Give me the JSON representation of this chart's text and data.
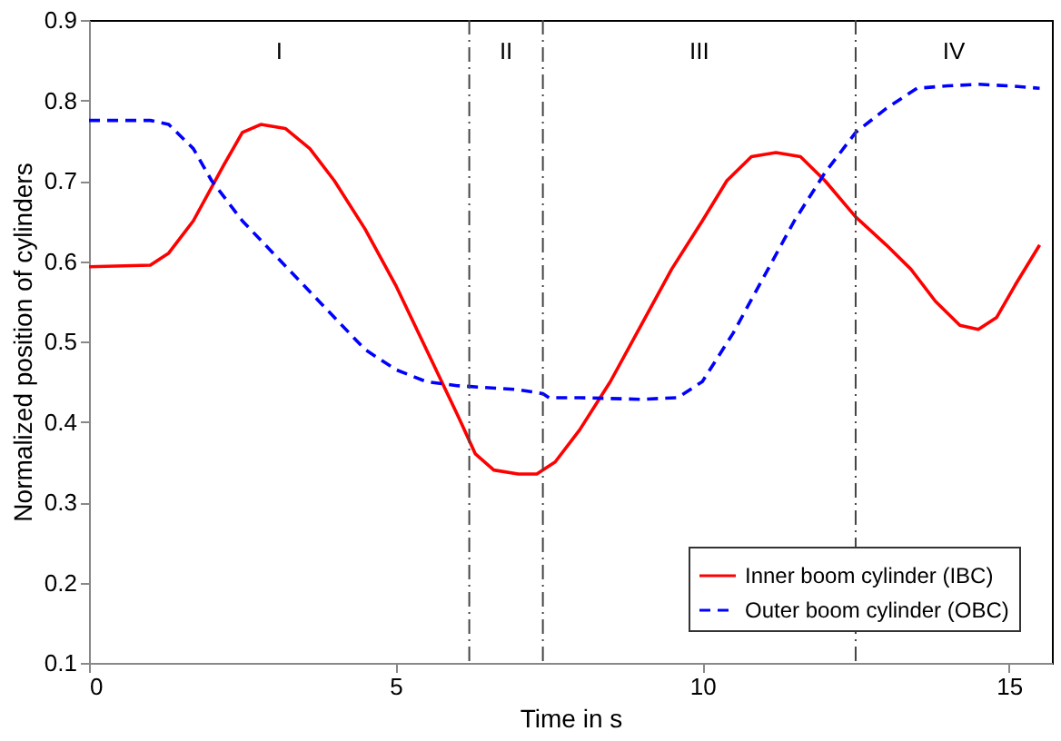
{
  "chart_data": {
    "type": "line",
    "xlabel": "Time in s",
    "ylabel": "Normalized position of cylinders",
    "xlim": [
      0,
      15.7
    ],
    "ylim": [
      0.1,
      0.9
    ],
    "xticks": [
      0,
      5,
      10,
      15
    ],
    "yticks": [
      0.1,
      0.2,
      0.3,
      0.4,
      0.5,
      0.6,
      0.7,
      0.8,
      0.9
    ],
    "grid": false,
    "legend": "bottom right",
    "series": [
      {
        "name": "Inner boom cylinder (IBC)",
        "color": "#ff0000",
        "line_style": "solid",
        "x": [
          0,
          1,
          1.3,
          1.7,
          2.2,
          2.5,
          2.8,
          3.2,
          3.6,
          4,
          4.5,
          5,
          5.5,
          6,
          6.3,
          6.6,
          7,
          7.3,
          7.6,
          8,
          8.5,
          9,
          9.5,
          10,
          10.4,
          10.8,
          11.2,
          11.6,
          12,
          12.5,
          13,
          13.4,
          13.8,
          14.2,
          14.5,
          14.8,
          15.1,
          15.5
        ],
        "values": [
          0.593,
          0.595,
          0.61,
          0.65,
          0.72,
          0.76,
          0.77,
          0.765,
          0.74,
          0.7,
          0.64,
          0.57,
          0.49,
          0.41,
          0.36,
          0.34,
          0.335,
          0.335,
          0.35,
          0.39,
          0.45,
          0.52,
          0.59,
          0.65,
          0.7,
          0.73,
          0.735,
          0.73,
          0.7,
          0.655,
          0.62,
          0.59,
          0.55,
          0.52,
          0.515,
          0.53,
          0.57,
          0.62
        ]
      },
      {
        "name": "Outer boom cylinder (OBC)",
        "color": "#0000ff",
        "line_style": "dashed",
        "x": [
          0,
          1,
          1.3,
          1.7,
          2,
          2.5,
          3,
          3.5,
          4,
          4.5,
          5,
          5.5,
          6,
          7,
          7.4,
          7.5,
          8,
          9,
          9.6,
          10,
          10.5,
          11,
          11.5,
          12,
          12.5,
          13,
          13.5,
          14,
          14.5,
          15,
          15.5
        ],
        "values": [
          0.775,
          0.775,
          0.77,
          0.74,
          0.7,
          0.65,
          0.61,
          0.57,
          0.53,
          0.49,
          0.465,
          0.45,
          0.445,
          0.44,
          0.435,
          0.43,
          0.43,
          0.428,
          0.43,
          0.45,
          0.51,
          0.58,
          0.65,
          0.71,
          0.76,
          0.79,
          0.815,
          0.818,
          0.82,
          0.818,
          0.815
        ]
      }
    ],
    "ref_lines": [
      {
        "axis": "x",
        "value": 6.2,
        "color": "#444444",
        "line_style": "dashdot"
      },
      {
        "axis": "x",
        "value": 7.4,
        "color": "#444444",
        "line_style": "dashdot"
      },
      {
        "axis": "x",
        "value": 12.5,
        "color": "#444444",
        "line_style": "dashdot"
      }
    ],
    "annotations": [
      "I",
      "II",
      "III",
      "IV"
    ]
  }
}
